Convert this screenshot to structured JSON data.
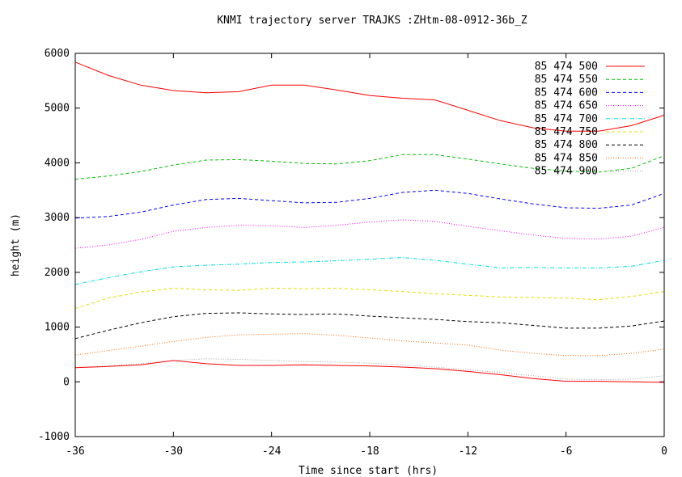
{
  "chart_data": {
    "type": "line",
    "title": "KNMI trajectory server TRAJKS :ZHtm-08-0912-36b_Z",
    "xlabel": "Time since start (hrs)",
    "ylabel": "height (m)",
    "xlim": [
      -36,
      0
    ],
    "ylim": [
      -1000,
      6000
    ],
    "x_ticks": [
      -36,
      -30,
      -24,
      -18,
      -12,
      -6,
      0
    ],
    "y_ticks": [
      -1000,
      0,
      1000,
      2000,
      3000,
      4000,
      5000,
      6000
    ],
    "grid": false,
    "legend_position": "top-right",
    "x": [
      -36,
      -34,
      -32,
      -30,
      -28,
      -26,
      -24,
      -22,
      -20,
      -18,
      -16,
      -14,
      -12,
      -10,
      -8,
      -6,
      -4,
      -2,
      0
    ],
    "series": [
      {
        "name": "85  474  500",
        "color": "#ff0000",
        "dash": "solid",
        "values": [
          5840,
          5600,
          5420,
          5320,
          5280,
          5300,
          5420,
          5420,
          5330,
          5230,
          5180,
          5150,
          4960,
          4770,
          4640,
          4580,
          4580,
          4680,
          4870
        ]
      },
      {
        "name": "85  474  550",
        "color": "#00c000",
        "dash": "dash",
        "values": [
          3700,
          3760,
          3840,
          3960,
          4050,
          4060,
          4030,
          3990,
          3980,
          4040,
          4150,
          4150,
          4070,
          3980,
          3900,
          3850,
          3830,
          3900,
          4130
        ]
      },
      {
        "name": "85  474  600",
        "color": "#0000ff",
        "dash": "dash",
        "values": [
          2990,
          3020,
          3100,
          3230,
          3330,
          3350,
          3310,
          3270,
          3280,
          3350,
          3460,
          3500,
          3440,
          3340,
          3250,
          3180,
          3170,
          3230,
          3440
        ]
      },
      {
        "name": "85  474  650",
        "color": "#ff00ff",
        "dash": "dot",
        "values": [
          2440,
          2500,
          2600,
          2750,
          2820,
          2860,
          2850,
          2820,
          2860,
          2920,
          2960,
          2930,
          2840,
          2760,
          2680,
          2620,
          2610,
          2660,
          2820
        ]
      },
      {
        "name": "85  474  700",
        "color": "#00e0e0",
        "dash": "dashdot",
        "values": [
          1780,
          1900,
          2010,
          2100,
          2130,
          2150,
          2180,
          2190,
          2210,
          2240,
          2270,
          2220,
          2150,
          2080,
          2090,
          2080,
          2080,
          2110,
          2220
        ]
      },
      {
        "name": "85  474  750",
        "color": "#e0e000",
        "dash": "dash",
        "values": [
          1340,
          1530,
          1640,
          1710,
          1680,
          1670,
          1710,
          1700,
          1710,
          1680,
          1650,
          1610,
          1580,
          1550,
          1540,
          1530,
          1500,
          1560,
          1650
        ]
      },
      {
        "name": "85  474  800",
        "color": "#000000",
        "dash": "dash",
        "values": [
          790,
          940,
          1080,
          1190,
          1250,
          1260,
          1240,
          1230,
          1240,
          1200,
          1170,
          1140,
          1100,
          1080,
          1030,
          980,
          980,
          1020,
          1110
        ]
      },
      {
        "name": "85  474  850",
        "color": "#ff6a00",
        "dash": "dot",
        "values": [
          490,
          570,
          650,
          740,
          810,
          860,
          870,
          880,
          850,
          800,
          750,
          710,
          670,
          580,
          520,
          480,
          480,
          520,
          600
        ]
      },
      {
        "name": "85  474  900",
        "color": "#a0a0a0",
        "dash": "dot",
        "values": [
          260,
          290,
          330,
          390,
          420,
          410,
          390,
          370,
          360,
          340,
          310,
          270,
          220,
          170,
          110,
          50,
          40,
          50,
          110
        ]
      },
      {
        "name": "",
        "color": "#ff0000",
        "dash": "solid",
        "values": [
          260,
          280,
          310,
          390,
          330,
          300,
          300,
          310,
          300,
          290,
          270,
          240,
          190,
          130,
          60,
          10,
          10,
          0,
          -10
        ]
      }
    ]
  }
}
